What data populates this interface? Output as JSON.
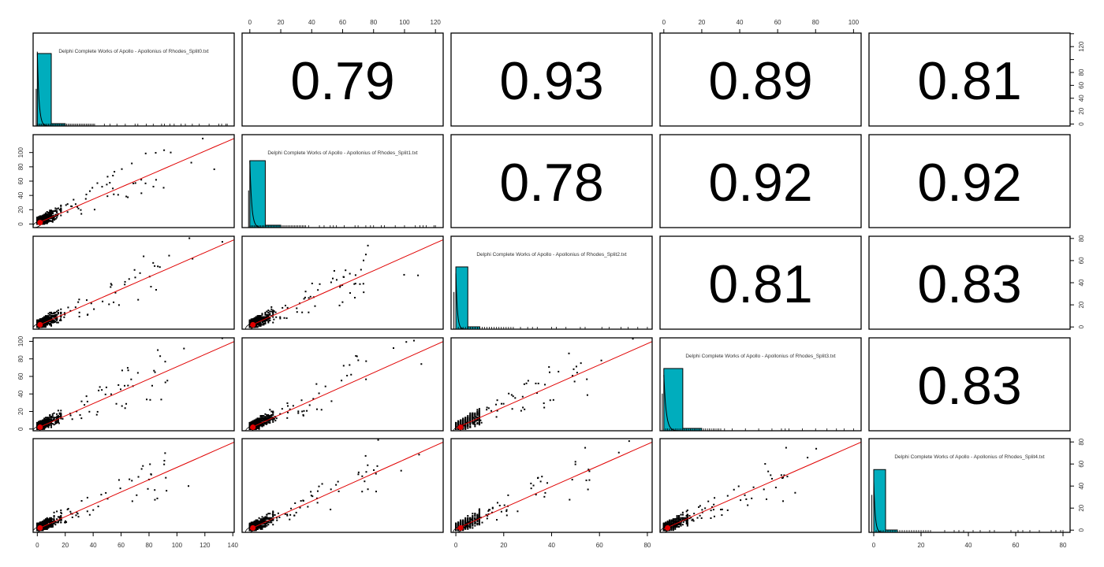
{
  "chart_data": {
    "type": "scatter",
    "layout": "pairs-panels (scatterplot matrix)",
    "variables": [
      "Delphi Complete Works of Apollo - Apollonius of Rhodes_Split0.txt",
      "Delphi Complete Works of Apollo - Apollonius of Rhodes_Split1.txt",
      "Delphi Complete Works of Apollo - Apollonius of Rhodes_Split2.txt",
      "Delphi Complete Works of Apollo - Apollonius of Rhodes_Split3.txt",
      "Delphi Complete Works of Apollo - Apollonius of Rhodes_Split4.txt"
    ],
    "short_names": [
      "Split0",
      "Split1",
      "Split2",
      "Split3",
      "Split4"
    ],
    "correlations": [
      {
        "row": 0,
        "col": 1,
        "value": "0.79"
      },
      {
        "row": 0,
        "col": 2,
        "value": "0.93"
      },
      {
        "row": 0,
        "col": 3,
        "value": "0.89"
      },
      {
        "row": 0,
        "col": 4,
        "value": "0.81"
      },
      {
        "row": 1,
        "col": 2,
        "value": "0.78"
      },
      {
        "row": 1,
        "col": 3,
        "value": "0.92"
      },
      {
        "row": 1,
        "col": 4,
        "value": "0.92"
      },
      {
        "row": 2,
        "col": 3,
        "value": "0.81"
      },
      {
        "row": 2,
        "col": 4,
        "value": "0.83"
      },
      {
        "row": 3,
        "col": 4,
        "value": "0.83"
      }
    ],
    "axes": {
      "Split0": {
        "range": [
          -3,
          141
        ],
        "ticks": [
          0,
          20,
          40,
          60,
          80,
          100,
          120,
          140
        ],
        "axis_side": "bottom"
      },
      "Split1": {
        "range": [
          -5,
          125
        ],
        "ticks": [
          0,
          20,
          40,
          60,
          80,
          100,
          120
        ],
        "axis_side": "top"
      },
      "Split2": {
        "range": [
          -2,
          82
        ],
        "ticks": [
          0,
          20,
          40,
          60,
          80
        ],
        "axis_side": "bottom"
      },
      "Split3": {
        "range": [
          -2,
          104
        ],
        "ticks": [
          0,
          20,
          40,
          60,
          80,
          100
        ],
        "axis_side": "top"
      },
      "Split4": {
        "range": [
          -2,
          83
        ],
        "ticks": [
          0,
          20,
          40,
          60,
          80
        ],
        "axis_side": "bottom"
      }
    },
    "left_axis": {
      "row1_Split1": {
        "ticks": [
          0,
          20,
          40,
          60,
          80,
          100
        ],
        "labels": [
          "0",
          "20",
          "40",
          "60",
          "80",
          "100"
        ]
      },
      "row3_Split3": {
        "ticks": [
          0,
          20,
          40,
          60,
          80,
          100
        ],
        "labels": [
          "0",
          "20",
          "40",
          "60",
          "80",
          "100"
        ]
      }
    },
    "right_axis": {
      "row0_Split0": {
        "ticks": [
          0,
          20,
          40,
          60,
          80,
          100,
          120,
          140
        ],
        "labels": [
          "0",
          "20",
          "40",
          "60",
          "80",
          "",
          "120",
          ""
        ]
      },
      "row2_Split2": {
        "ticks": [
          0,
          20,
          40,
          60,
          80
        ],
        "labels": [
          "0",
          "20",
          "40",
          "60",
          "80"
        ]
      },
      "row4_Split4": {
        "ticks": [
          0,
          20,
          40,
          60,
          80
        ],
        "labels": [
          "0",
          "20",
          "40",
          "60",
          "80"
        ]
      }
    },
    "histograms": [
      {
        "var": "Split0",
        "bin_width": 10,
        "first_bin_height_frac": 0.78,
        "density_peak_frac": 0.8,
        "rug_max": 136
      },
      {
        "var": "Split1",
        "bin_width": 10,
        "first_bin_height_frac": 0.72,
        "density_peak_frac": 0.72,
        "rug_max": 120
      },
      {
        "var": "Split2",
        "bin_width": 5,
        "first_bin_height_frac": 0.67,
        "density_peak_frac": 0.6,
        "rug_max": 80
      },
      {
        "var": "Split3",
        "bin_width": 10,
        "first_bin_height_frac": 0.67,
        "density_peak_frac": 0.6,
        "rug_max": 100
      },
      {
        "var": "Split4",
        "bin_width": 5,
        "first_bin_height_frac": 0.67,
        "density_peak_frac": 0.55,
        "rug_max": 80
      }
    ],
    "scatter_summary": "Lower panels: scatterplots of word counts with red LOESS smooth and correlation ellipse; dense cluster near origin, positive linear trend.",
    "colors": {
      "histogram_fill": "#00adbd",
      "smooth_line": "#e00000",
      "points": "#000000"
    }
  }
}
